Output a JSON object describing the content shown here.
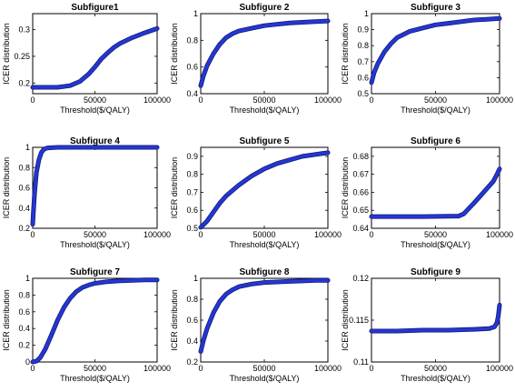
{
  "colors": {
    "series": "#2436d6",
    "series_edge": "#111a66",
    "axes": "#000000",
    "background": "#ffffff"
  },
  "chart_data": [
    {
      "type": "line",
      "title": "Subfigure1",
      "xlabel": "Threshold($/QALY)",
      "ylabel": "ICER distribution",
      "xlim": [
        0,
        100000
      ],
      "ylim": [
        0.18,
        0.33
      ],
      "xticks": [
        0,
        50000,
        100000
      ],
      "xticklabels": [
        "0",
        "50000",
        "100000"
      ],
      "yticks": [
        0.2,
        0.25,
        0.3
      ],
      "yticklabels": [
        "0.2",
        "0.25",
        "0.3"
      ],
      "grid": false,
      "series": [
        {
          "x": [
            0,
            10000,
            20000,
            30000,
            38000,
            45000,
            50000,
            55000,
            60000,
            65000,
            70000,
            80000,
            90000,
            100000
          ],
          "y": [
            0.192,
            0.192,
            0.192,
            0.195,
            0.203,
            0.217,
            0.23,
            0.245,
            0.256,
            0.266,
            0.274,
            0.285,
            0.294,
            0.302
          ]
        }
      ]
    },
    {
      "type": "line",
      "title": "Subfigure 2",
      "xlabel": "Threshold($/QALY)",
      "ylabel": "ICER distribution",
      "xlim": [
        0,
        100000
      ],
      "ylim": [
        0.4,
        1.0
      ],
      "xticks": [
        0,
        50000,
        100000
      ],
      "xticklabels": [
        "0",
        "50000",
        "100000"
      ],
      "yticks": [
        0.4,
        0.6,
        0.8,
        1
      ],
      "yticklabels": [
        "0.4",
        "0.6",
        "0.8",
        "1"
      ],
      "grid": false,
      "series": [
        {
          "x": [
            0,
            2000,
            5000,
            10000,
            15000,
            20000,
            25000,
            30000,
            40000,
            50000,
            60000,
            70000,
            80000,
            90000,
            100000
          ],
          "y": [
            0.46,
            0.53,
            0.61,
            0.7,
            0.77,
            0.82,
            0.85,
            0.87,
            0.89,
            0.91,
            0.92,
            0.93,
            0.935,
            0.94,
            0.945
          ]
        }
      ]
    },
    {
      "type": "line",
      "title": "Subfigure 3",
      "xlabel": "Threshold($/QALY)",
      "ylabel": "ICER distribution",
      "xlim": [
        0,
        100000
      ],
      "ylim": [
        0.5,
        1.0
      ],
      "xticks": [
        0,
        50000,
        100000
      ],
      "xticklabels": [
        "0",
        "50000",
        "100000"
      ],
      "yticks": [
        0.5,
        0.6,
        0.7,
        0.8,
        0.9,
        1
      ],
      "yticklabels": [
        "0.5",
        "0.6",
        "0.7",
        "0.8",
        "0.9",
        "1"
      ],
      "grid": false,
      "series": [
        {
          "x": [
            0,
            2000,
            5000,
            10000,
            15000,
            20000,
            25000,
            30000,
            40000,
            50000,
            60000,
            70000,
            80000,
            90000,
            100000
          ],
          "y": [
            0.57,
            0.63,
            0.69,
            0.76,
            0.81,
            0.85,
            0.87,
            0.89,
            0.91,
            0.93,
            0.94,
            0.95,
            0.96,
            0.965,
            0.97
          ]
        }
      ]
    },
    {
      "type": "line",
      "title": "Subfigure 4",
      "xlabel": "Threshold($/QALY)",
      "ylabel": "ICER distribution",
      "xlim": [
        0,
        100000
      ],
      "ylim": [
        0.2,
        1.0
      ],
      "xticks": [
        0,
        50000,
        100000
      ],
      "xticklabels": [
        "0",
        "50000",
        "100000"
      ],
      "yticks": [
        0.2,
        0.4,
        0.6,
        0.8,
        1
      ],
      "yticklabels": [
        "0.2",
        "0.4",
        "0.6",
        "0.8",
        "1"
      ],
      "grid": false,
      "series": [
        {
          "x": [
            0,
            500,
            1500,
            3000,
            5000,
            7000,
            9000,
            12000,
            20000,
            50000,
            100000
          ],
          "y": [
            0.24,
            0.35,
            0.55,
            0.75,
            0.88,
            0.95,
            0.98,
            0.995,
            1.0,
            1.0,
            1.0
          ]
        }
      ]
    },
    {
      "type": "line",
      "title": "Subfigure 5",
      "xlabel": "Threshold($/QALY)",
      "ylabel": "ICER distribution",
      "xlim": [
        0,
        100000
      ],
      "ylim": [
        0.5,
        0.95
      ],
      "xticks": [
        0,
        50000,
        100000
      ],
      "xticklabels": [
        "0",
        "50000",
        "100000"
      ],
      "yticks": [
        0.5,
        0.6,
        0.7,
        0.8,
        0.9
      ],
      "yticklabels": [
        "0.5",
        "0.6",
        "0.7",
        "0.8",
        "0.9"
      ],
      "grid": false,
      "series": [
        {
          "x": [
            0,
            5000,
            10000,
            15000,
            20000,
            30000,
            40000,
            50000,
            60000,
            70000,
            80000,
            90000,
            100000
          ],
          "y": [
            0.505,
            0.54,
            0.59,
            0.64,
            0.68,
            0.74,
            0.79,
            0.83,
            0.86,
            0.88,
            0.9,
            0.91,
            0.92
          ]
        }
      ]
    },
    {
      "type": "line",
      "title": "Subfigure 6",
      "xlabel": "Threshold($/QALY)",
      "ylabel": "ICER distribution",
      "xlim": [
        0,
        100000
      ],
      "ylim": [
        0.64,
        0.685
      ],
      "xticks": [
        0,
        50000,
        100000
      ],
      "xticklabels": [
        "0",
        "50000",
        "100000"
      ],
      "yticks": [
        0.64,
        0.65,
        0.66,
        0.67,
        0.68
      ],
      "yticklabels": [
        "0.64",
        "0.65",
        "0.66",
        "0.67",
        "0.68"
      ],
      "grid": false,
      "series": [
        {
          "x": [
            0,
            20000,
            40000,
            60000,
            68000,
            72000,
            76000,
            80000,
            85000,
            90000,
            95000,
            98000,
            100000
          ],
          "y": [
            0.6465,
            0.6465,
            0.6465,
            0.6467,
            0.6468,
            0.648,
            0.651,
            0.654,
            0.658,
            0.662,
            0.666,
            0.67,
            0.673
          ]
        }
      ]
    },
    {
      "type": "line",
      "title": "Subfigure 7",
      "xlabel": "Threshold($/QALY)",
      "ylabel": "ICER distribution",
      "xlim": [
        0,
        100000
      ],
      "ylim": [
        0,
        1.0
      ],
      "xticks": [
        0,
        50000,
        100000
      ],
      "xticklabels": [
        "0",
        "50000",
        "100000"
      ],
      "yticks": [
        0,
        0.2,
        0.4,
        0.6,
        0.8,
        1
      ],
      "yticklabels": [
        "0",
        "0.2",
        "0.4",
        "0.6",
        "0.8",
        "1"
      ],
      "grid": false,
      "series": [
        {
          "x": [
            0,
            3000,
            6000,
            10000,
            15000,
            20000,
            25000,
            30000,
            35000,
            40000,
            45000,
            50000,
            60000,
            70000,
            80000,
            90000,
            100000
          ],
          "y": [
            0.0,
            0.01,
            0.05,
            0.15,
            0.32,
            0.5,
            0.65,
            0.76,
            0.84,
            0.89,
            0.92,
            0.94,
            0.96,
            0.97,
            0.975,
            0.98,
            0.98
          ]
        }
      ]
    },
    {
      "type": "line",
      "title": "Subfigure 8",
      "xlabel": "Threshold($/QALY)",
      "ylabel": "ICER distribution",
      "xlim": [
        0,
        100000
      ],
      "ylim": [
        0.2,
        1.0
      ],
      "xticks": [
        0,
        50000,
        100000
      ],
      "xticklabels": [
        "0",
        "50000",
        "100000"
      ],
      "yticks": [
        0.2,
        0.4,
        0.6,
        0.8,
        1
      ],
      "yticklabels": [
        "0.2",
        "0.4",
        "0.6",
        "0.8",
        "1"
      ],
      "grid": false,
      "series": [
        {
          "x": [
            0,
            2000,
            5000,
            10000,
            15000,
            20000,
            25000,
            30000,
            40000,
            50000,
            60000,
            70000,
            80000,
            90000,
            100000
          ],
          "y": [
            0.3,
            0.4,
            0.52,
            0.67,
            0.78,
            0.85,
            0.89,
            0.92,
            0.945,
            0.96,
            0.965,
            0.97,
            0.975,
            0.98,
            0.98
          ]
        }
      ]
    },
    {
      "type": "line",
      "title": "Subfigure 9",
      "xlabel": "Threshold($/QALY)",
      "ylabel": "ICER distribution",
      "xlim": [
        0,
        100000
      ],
      "ylim": [
        0.11,
        0.12
      ],
      "xticks": [
        0,
        50000,
        100000
      ],
      "xticklabels": [
        "0",
        "50000",
        "100000"
      ],
      "yticks": [
        0.11,
        0.115,
        0.12
      ],
      "yticklabels": [
        "0.11",
        "0.115",
        "0.12"
      ],
      "grid": false,
      "series": [
        {
          "x": [
            0,
            20000,
            40000,
            60000,
            80000,
            92000,
            96000,
            98000,
            99000,
            100000
          ],
          "y": [
            0.1137,
            0.1137,
            0.1138,
            0.1138,
            0.1139,
            0.114,
            0.1142,
            0.1147,
            0.1155,
            0.1168
          ]
        }
      ]
    }
  ]
}
